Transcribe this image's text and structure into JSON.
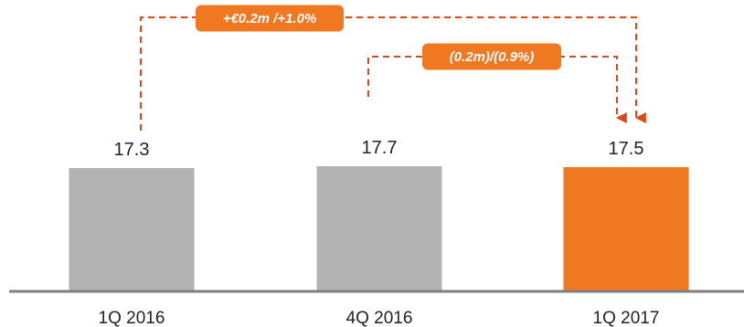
{
  "chart_data": {
    "type": "bar",
    "categories": [
      "1Q 2016",
      "4Q 2016",
      "1Q 2017"
    ],
    "values": [
      17.3,
      17.7,
      17.5
    ],
    "value_labels": [
      "17.3",
      "17.7",
      "17.5"
    ],
    "highlight_index": 2,
    "ylim": [
      0,
      18
    ],
    "grid": false,
    "annotations": [
      {
        "text": "+€0.2m /+1.0%",
        "from": "1Q 2016",
        "to": "1Q 2017"
      },
      {
        "text": "(0.2m)/(0.9%)",
        "from": "4Q 2016",
        "to": "1Q 2017"
      }
    ]
  },
  "colors": {
    "bar_default": "#b2b2b2",
    "bar_highlight": "#f07820",
    "annotation_box": "#f07820",
    "annotation_line": "#d84a1c",
    "axis": "#7f7f7f"
  }
}
